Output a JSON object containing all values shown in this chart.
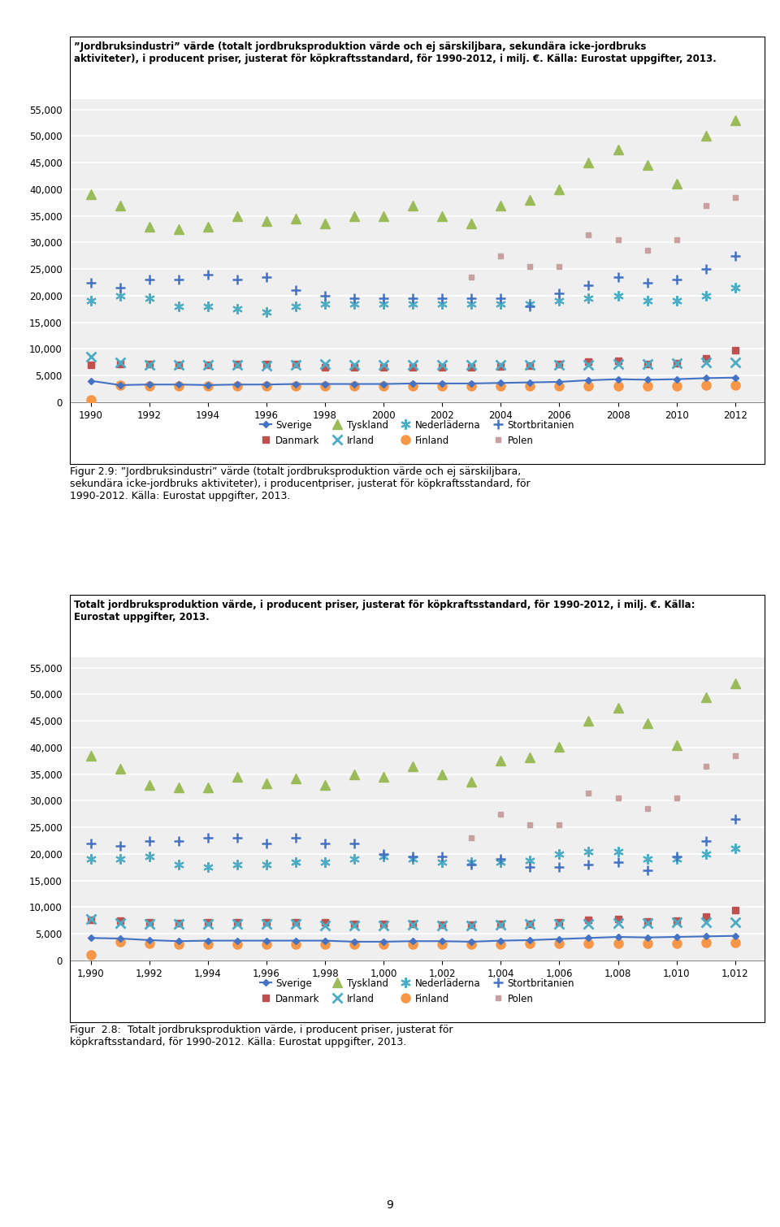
{
  "years": [
    1990,
    1991,
    1992,
    1993,
    1994,
    1995,
    1996,
    1997,
    1998,
    1999,
    2000,
    2001,
    2002,
    2003,
    2004,
    2005,
    2006,
    2007,
    2008,
    2009,
    2010,
    2011,
    2012
  ],
  "chart1": {
    "Sverige": [
      4200,
      4100,
      3800,
      3600,
      3700,
      3700,
      3700,
      3700,
      3700,
      3500,
      3500,
      3600,
      3600,
      3500,
      3700,
      3800,
      4000,
      4200,
      4400,
      4300,
      4400,
      4500,
      4600
    ],
    "Danmark": [
      7600,
      7500,
      7200,
      7000,
      7100,
      7100,
      7200,
      7200,
      7200,
      6800,
      6800,
      6800,
      6700,
      6700,
      6800,
      6800,
      7100,
      7600,
      7700,
      7300,
      7500,
      8200,
      9500
    ],
    "Tyskland": [
      38500,
      36000,
      33000,
      32500,
      32500,
      34500,
      33200,
      34200,
      33000,
      35000,
      34500,
      36500,
      35000,
      33500,
      37500,
      38200,
      40200,
      45000,
      47500,
      44500,
      40500,
      49500,
      52000
    ],
    "Irland": [
      7700,
      7000,
      6800,
      6800,
      6800,
      6800,
      6800,
      6800,
      6500,
      6600,
      6500,
      6700,
      6600,
      6600,
      6700,
      6800,
      6800,
      6900,
      7000,
      7000,
      7100,
      7100,
      7200
    ],
    "Nederladerna": [
      19000,
      19000,
      19500,
      18000,
      17500,
      18000,
      18000,
      18500,
      18500,
      19000,
      19500,
      19000,
      18500,
      18500,
      18500,
      18800,
      20000,
      20500,
      20500,
      19000,
      19000,
      20000,
      21000
    ],
    "Finland": [
      1000,
      3500,
      3200,
      3000,
      3000,
      3000,
      3000,
      3000,
      3000,
      3000,
      3000,
      3100,
      3100,
      3100,
      3100,
      3200,
      3200,
      3200,
      3200,
      3200,
      3200,
      3300,
      3300
    ],
    "Stortbritanien": [
      22000,
      21500,
      22500,
      22500,
      23000,
      23000,
      22000,
      23000,
      22000,
      22000,
      20000,
      19500,
      19500,
      18000,
      19000,
      17500,
      17500,
      18000,
      18500,
      17000,
      19500,
      22500,
      26500
    ],
    "Polen": [
      null,
      null,
      null,
      null,
      null,
      null,
      null,
      null,
      null,
      null,
      null,
      null,
      null,
      23000,
      27500,
      25500,
      25500,
      31500,
      30500,
      28500,
      30500,
      36500,
      38500
    ]
  },
  "chart2": {
    "Sverige": [
      4000,
      3200,
      3300,
      3300,
      3200,
      3300,
      3300,
      3400,
      3400,
      3400,
      3400,
      3500,
      3500,
      3500,
      3600,
      3700,
      3800,
      4100,
      4300,
      4200,
      4300,
      4500,
      4600
    ],
    "Danmark": [
      7000,
      7200,
      7100,
      7000,
      7000,
      7100,
      7100,
      7200,
      6500,
      6500,
      6500,
      6600,
      6600,
      6600,
      6700,
      6800,
      7100,
      7600,
      7700,
      7200,
      7300,
      8200,
      9800
    ],
    "Tyskland": [
      39000,
      37000,
      33000,
      32500,
      33000,
      35000,
      34000,
      34500,
      33500,
      35000,
      35000,
      37000,
      35000,
      33500,
      37000,
      38000,
      40000,
      45000,
      47500,
      44500,
      41000,
      50000,
      53000
    ],
    "Irland": [
      8500,
      7500,
      7000,
      7000,
      7000,
      7000,
      6800,
      7000,
      7200,
      7000,
      7000,
      7000,
      7000,
      7000,
      7000,
      7000,
      7000,
      7000,
      7200,
      7200,
      7300,
      7400,
      7500
    ],
    "Nederladerna": [
      19000,
      20000,
      19500,
      18000,
      18000,
      17500,
      17000,
      18000,
      18500,
      18500,
      18500,
      18500,
      18500,
      18500,
      18500,
      18500,
      19000,
      19500,
      20000,
      19000,
      19000,
      20000,
      21500
    ],
    "Finland": [
      500,
      3200,
      3000,
      3000,
      3000,
      3000,
      3000,
      3000,
      3000,
      3000,
      3000,
      3000,
      3000,
      3000,
      3000,
      3000,
      3000,
      3100,
      3100,
      3100,
      3100,
      3200,
      3200
    ],
    "Stortbritanien": [
      22500,
      21500,
      23000,
      23000,
      24000,
      23000,
      23500,
      21000,
      20000,
      19500,
      19500,
      19500,
      19500,
      19500,
      19500,
      18000,
      20500,
      22000,
      23500,
      22500,
      23000,
      25000,
      27500
    ],
    "Polen": [
      null,
      null,
      null,
      null,
      null,
      null,
      null,
      null,
      null,
      null,
      null,
      null,
      null,
      23500,
      27500,
      25500,
      25500,
      31500,
      30500,
      28500,
      30500,
      37000,
      38500
    ]
  },
  "chart1_title": "Totalt jordbruksproduktion värde, i producent priser, justerat för köpkraftsstandard, för 1990-2012, i milj. €. Källa:\nEurostat uppgifter, 2013.",
  "chart2_title": "”Jordbruksindustri” värde (totalt jordbruksproduktion värde och ej särskiljbara, sekundära icke-jordbruks\naktiviteter), i producent priser, justerat för köpkraftsstandard, för 1990-2012, i milj. €. Källa: Eurostat uppgifter, 2013.",
  "fig28_caption": "Figur  2.8:  Totalt jordbruksproduktion värde, i producent priser, justerat för\nköpkraftsstandard, för 1990-2012. Källa: Eurostat uppgifter, 2013.",
  "fig29_caption": "Figur 2.9: ”Jordbruksindustri” värde (totalt jordbruksproduktion värde och ej särskiljbara,\nsekundära icke-jordbruks aktiviteter), i producentpriser, justerat för köpkraftsstandard, för\n1990-2012. Källa: Eurostat uppgifter, 2013.",
  "page_number": "9",
  "yticks": [
    0,
    5000,
    10000,
    15000,
    20000,
    25000,
    30000,
    35000,
    40000,
    45000,
    50000,
    55000
  ],
  "ylim_max": 57000
}
